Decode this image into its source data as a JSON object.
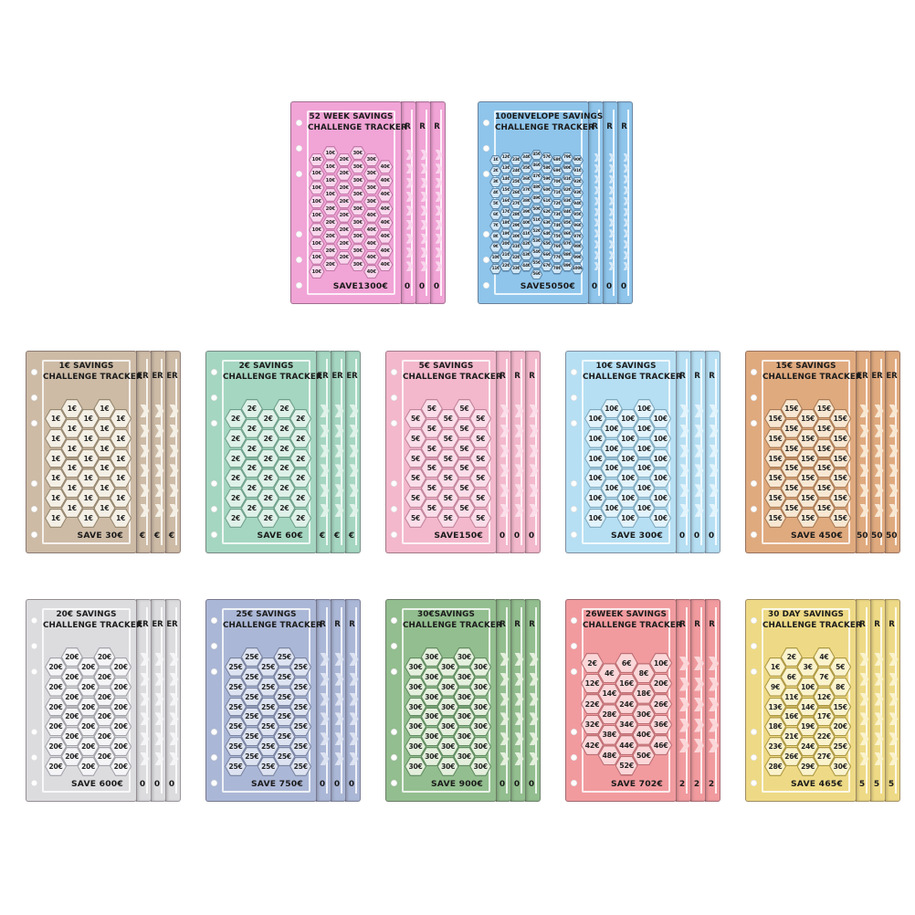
{
  "page": {
    "background": "#ffffff"
  },
  "cards": [
    {
      "id": "52-week",
      "type": "week52",
      "row": 0,
      "col": 0,
      "title": [
        "52 WEEK SAVINGS",
        "CHALLENGE TRACKER"
      ],
      "save_label": "SAVE1300€",
      "edge_top": "R",
      "edge_bottom": "0",
      "colors": {
        "bg": "#F1A4D6",
        "hex_fill": "#F9D7ED",
        "hex_border": "#C478A9"
      },
      "col_dy": [
        0.5,
        0,
        0.5,
        0,
        0.5,
        1
      ],
      "hex_columns": [
        [
          "10€",
          "10€",
          "10€",
          "10€",
          "10€",
          "10€",
          "10€",
          "10€",
          "10€"
        ],
        [
          "10€",
          "10€",
          "10€",
          "10€",
          "20€",
          "20€",
          "20€",
          "20€",
          "20€"
        ],
        [
          "20€",
          "20€",
          "20€",
          "20€",
          "20€",
          "20€",
          "20€",
          "20€"
        ],
        [
          "30€",
          "30€",
          "30€",
          "30€",
          "30€",
          "30€",
          "30€",
          "30€",
          "30€"
        ],
        [
          "30€",
          "30€",
          "30€",
          "30€",
          "40€",
          "40€",
          "40€",
          "40€",
          "40€"
        ],
        [
          "40€",
          "40€",
          "40€",
          "40€",
          "40€",
          "40€",
          "40€",
          "40€"
        ]
      ]
    },
    {
      "id": "100-envelope",
      "type": "env100",
      "row": 0,
      "col": 1,
      "title": [
        "100ENVELOPE SAVINGS",
        "CHALLENGE TRACKER"
      ],
      "save_label": "SAVE5050€",
      "edge_top": "R",
      "edge_bottom": "0",
      "colors": {
        "bg": "#8FC5EB",
        "hex_fill": "#D3E8F8",
        "hex_border": "#5D89AC"
      },
      "col_dy": [
        0.5,
        0.25,
        0.5,
        0.25,
        0,
        0.25,
        0.5,
        0.25,
        0.5
      ],
      "hex_columns": [
        [
          "1€",
          "2€",
          "3€",
          "4€",
          "5€",
          "6€",
          "7€",
          "8€",
          "9€",
          "10€",
          "11€"
        ],
        [
          "12€",
          "13€",
          "14€",
          "15€",
          "16€",
          "17€",
          "18€",
          "19€",
          "20€",
          "21€",
          "22€"
        ],
        [
          "23€",
          "24€",
          "25€",
          "26€",
          "27€",
          "28€",
          "29€",
          "30€",
          "31€",
          "32€",
          "33€"
        ],
        [
          "34€",
          "35€",
          "36€",
          "37€",
          "38€",
          "39€",
          "40€",
          "41€",
          "42€",
          "43€",
          "44€"
        ],
        [
          "45€",
          "46€",
          "47€",
          "48€",
          "49€",
          "50€",
          "51€",
          "52€",
          "53€",
          "54€",
          "55€",
          "56€"
        ],
        [
          "57€",
          "58€",
          "59€",
          "60€",
          "61€",
          "62€",
          "63€",
          "64€",
          "65€",
          "66€",
          "67€"
        ],
        [
          "68€",
          "69€",
          "70€",
          "71€",
          "72€",
          "73€",
          "74€",
          "75€",
          "76€",
          "77€",
          "78€"
        ],
        [
          "79€",
          "80€",
          "81€",
          "82€",
          "83€",
          "84€",
          "85€",
          "86€",
          "87€",
          "88€",
          "89€"
        ],
        [
          "90€",
          "91€",
          "92€",
          "93€",
          "94€",
          "95€",
          "96€",
          "97€",
          "98€",
          "99€",
          "100€"
        ]
      ]
    },
    {
      "id": "1-euro",
      "type": "norm",
      "row": 1,
      "col": 0,
      "title": [
        "1€ SAVINGS",
        "CHALLENGE TRACKER"
      ],
      "save_label": "SAVE 30€",
      "edge_top": "ER",
      "edge_bottom": "€",
      "colors": {
        "bg": "#CDBBA6",
        "hex_fill": "#F5F0E6",
        "hex_border": "#96876F"
      },
      "col_dy": [
        0.5,
        0,
        0.5,
        0,
        0.5
      ],
      "hex_columns": [
        [
          "1€",
          "1€",
          "1€",
          "1€",
          "1€",
          "1€"
        ],
        [
          "1€",
          "1€",
          "1€",
          "1€",
          "1€",
          "1€"
        ],
        [
          "1€",
          "1€",
          "1€",
          "1€",
          "1€",
          "1€"
        ],
        [
          "1€",
          "1€",
          "1€",
          "1€",
          "1€",
          "1€"
        ],
        [
          "1€",
          "1€",
          "1€",
          "1€",
          "1€",
          "1€"
        ]
      ]
    },
    {
      "id": "2-euro",
      "type": "norm",
      "row": 1,
      "col": 1,
      "title": [
        "2€ SAVINGS",
        "CHALLENGE TRACKER"
      ],
      "save_label": "SAVE 60€",
      "edge_top": "ER",
      "edge_bottom": "€",
      "colors": {
        "bg": "#A5D6C1",
        "hex_fill": "#DFF2E9",
        "hex_border": "#6FA08B"
      },
      "col_dy": [
        0.5,
        0,
        0.5,
        0,
        0.5
      ],
      "hex_columns": [
        [
          "2€",
          "2€",
          "2€",
          "2€",
          "2€",
          "2€"
        ],
        [
          "2€",
          "2€",
          "2€",
          "2€",
          "2€",
          "2€"
        ],
        [
          "2€",
          "2€",
          "2€",
          "2€",
          "2€",
          "2€"
        ],
        [
          "2€",
          "2€",
          "2€",
          "2€",
          "2€",
          "2€"
        ],
        [
          "2€",
          "2€",
          "2€",
          "2€",
          "2€",
          "2€"
        ]
      ]
    },
    {
      "id": "5-euro",
      "type": "norm",
      "row": 1,
      "col": 2,
      "title": [
        "5€ SAVINGS",
        "CHALLENGE TRACKER"
      ],
      "save_label": "SAVE150€",
      "edge_top": "R",
      "edge_bottom": "0",
      "colors": {
        "bg": "#F3B8CC",
        "hex_fill": "#FBDEE9",
        "hex_border": "#C2849B"
      },
      "col_dy": [
        0.5,
        0,
        0.5,
        0,
        0.5
      ],
      "hex_columns": [
        [
          "5€",
          "5€",
          "5€",
          "5€",
          "5€",
          "5€"
        ],
        [
          "5€",
          "5€",
          "5€",
          "5€",
          "5€",
          "5€"
        ],
        [
          "5€",
          "5€",
          "5€",
          "5€",
          "5€",
          "5€"
        ],
        [
          "5€",
          "5€",
          "5€",
          "5€",
          "5€",
          "5€"
        ],
        [
          "5€",
          "5€",
          "5€",
          "5€",
          "5€",
          "5€"
        ]
      ]
    },
    {
      "id": "10-euro",
      "type": "norm",
      "row": 1,
      "col": 3,
      "title": [
        "10€ SAVINGS",
        "CHALLENGE TRACKER"
      ],
      "save_label": "SAVE 300€",
      "edge_top": "R",
      "edge_bottom": "0",
      "colors": {
        "bg": "#B6DFF3",
        "hex_fill": "#E3F4FC",
        "hex_border": "#7FA9BE"
      },
      "col_dy": [
        0.5,
        0,
        0.5,
        0,
        0.5
      ],
      "hex_columns": [
        [
          "10€",
          "10€",
          "10€",
          "10€",
          "10€",
          "10€"
        ],
        [
          "10€",
          "10€",
          "10€",
          "10€",
          "10€",
          "10€"
        ],
        [
          "10€",
          "10€",
          "10€",
          "10€",
          "10€",
          "10€"
        ],
        [
          "10€",
          "10€",
          "10€",
          "10€",
          "10€",
          "10€"
        ],
        [
          "10€",
          "10€",
          "10€",
          "10€",
          "10€",
          "10€"
        ]
      ]
    },
    {
      "id": "15-euro",
      "type": "norm",
      "row": 1,
      "col": 4,
      "title": [
        "15€ SAVINGS",
        "CHALLENGE TRACKER"
      ],
      "save_label": "SAVE 450€",
      "edge_top": "ER",
      "edge_bottom": "50",
      "colors": {
        "bg": "#E0AA7F",
        "hex_fill": "#F8E8D3",
        "hex_border": "#A97B54"
      },
      "col_dy": [
        0.5,
        0,
        0.5,
        0,
        0.5
      ],
      "hex_columns": [
        [
          "15€",
          "15€",
          "15€",
          "15€",
          "15€",
          "15€"
        ],
        [
          "15€",
          "15€",
          "15€",
          "15€",
          "15€",
          "15€"
        ],
        [
          "15€",
          "15€",
          "15€",
          "15€",
          "15€",
          "15€"
        ],
        [
          "15€",
          "15€",
          "15€",
          "15€",
          "15€",
          "15€"
        ],
        [
          "15€",
          "15€",
          "15€",
          "15€",
          "15€",
          "15€"
        ]
      ]
    },
    {
      "id": "20-euro",
      "type": "norm",
      "row": 2,
      "col": 0,
      "title": [
        "20€ SAVINGS",
        "CHALLENGE TRACKER"
      ],
      "save_label": "SAVE 600€",
      "edge_top": "ER",
      "edge_bottom": "0",
      "colors": {
        "bg": "#DCDCDF",
        "hex_fill": "#F5F5F7",
        "hex_border": "#A2A3A9"
      },
      "col_dy": [
        0.5,
        0,
        0.5,
        0,
        0.5
      ],
      "hex_columns": [
        [
          "20€",
          "20€",
          "20€",
          "20€",
          "20€",
          "20€"
        ],
        [
          "20€",
          "20€",
          "20€",
          "20€",
          "20€",
          "20€"
        ],
        [
          "20€",
          "20€",
          "20€",
          "20€",
          "20€",
          "20€"
        ],
        [
          "20€",
          "20€",
          "20€",
          "20€",
          "20€",
          "20€"
        ],
        [
          "20€",
          "20€",
          "20€",
          "20€",
          "20€",
          "20€"
        ]
      ]
    },
    {
      "id": "25-euro",
      "type": "norm",
      "row": 2,
      "col": 1,
      "title": [
        "25€ SAVINGS",
        "CHALLENGE TRACKER"
      ],
      "save_label": "SAVE 750€",
      "edge_top": "R",
      "edge_bottom": "0",
      "colors": {
        "bg": "#ABB7D6",
        "hex_fill": "#DDE3F1",
        "hex_border": "#7A84A1"
      },
      "col_dy": [
        0.5,
        0,
        0.5,
        0,
        0.5
      ],
      "hex_columns": [
        [
          "25€",
          "25€",
          "25€",
          "25€",
          "25€",
          "25€"
        ],
        [
          "25€",
          "25€",
          "25€",
          "25€",
          "25€",
          "25€"
        ],
        [
          "25€",
          "25€",
          "25€",
          "25€",
          "25€",
          "25€"
        ],
        [
          "25€",
          "25€",
          "25€",
          "25€",
          "25€",
          "25€"
        ],
        [
          "25€",
          "25€",
          "25€",
          "25€",
          "25€",
          "25€"
        ]
      ]
    },
    {
      "id": "30-euro",
      "type": "norm",
      "row": 2,
      "col": 2,
      "title": [
        "30€SAVINGS",
        "CHALLENGE TRACKER"
      ],
      "save_label": "SAVE 900€",
      "edge_top": "R",
      "edge_bottom": "0",
      "colors": {
        "bg": "#93BE8F",
        "hex_fill": "#E4F0DD",
        "hex_border": "#618C60"
      },
      "col_dy": [
        0.5,
        0,
        0.5,
        0,
        0.5
      ],
      "hex_columns": [
        [
          "30€",
          "30€",
          "30€",
          "30€",
          "30€",
          "30€"
        ],
        [
          "30€",
          "30€",
          "30€",
          "30€",
          "30€",
          "30€"
        ],
        [
          "30€",
          "30€",
          "30€",
          "30€",
          "30€",
          "30€"
        ],
        [
          "30€",
          "30€",
          "30€",
          "30€",
          "30€",
          "30€"
        ],
        [
          "30€",
          "30€",
          "30€",
          "30€",
          "30€",
          "30€"
        ]
      ]
    },
    {
      "id": "26-week",
      "type": "week26",
      "row": 2,
      "col": 3,
      "title": [
        "26WEEK SAVINGS",
        "CHALLENGE TRACKER"
      ],
      "save_label": "SAVE 702€",
      "edge_top": "R",
      "edge_bottom": "2",
      "colors": {
        "bg": "#F19B9F",
        "hex_fill": "#FBD7D9",
        "hex_border": "#BC6E73"
      },
      "col_dy": [
        0,
        0.5,
        0,
        0.5,
        0
      ],
      "hex_columns": [
        [
          "2€",
          "12€",
          "22€",
          "32€",
          "42€"
        ],
        [
          "4€",
          "14€",
          "28€",
          "38€",
          "48€"
        ],
        [
          "6€",
          "16€",
          "24€",
          "34€",
          "44€",
          "52€"
        ],
        [
          "8€",
          "18€",
          "30€",
          "40€",
          "50€"
        ],
        [
          "10€",
          "20€",
          "26€",
          "36€",
          "46€"
        ]
      ]
    },
    {
      "id": "30-day",
      "type": "norm",
      "row": 2,
      "col": 4,
      "title": [
        "30 DAY SAVINGS",
        "CHALLENGE TRACKER"
      ],
      "save_label": "SAVE 465€",
      "edge_top": "R",
      "edge_bottom": "5",
      "colors": {
        "bg": "#EEDA86",
        "hex_fill": "#FAF3CD",
        "hex_border": "#AD9741"
      },
      "col_dy": [
        0.5,
        0,
        0.5,
        0,
        0.5
      ],
      "hex_columns": [
        [
          "1€",
          "9€",
          "13€",
          "18€",
          "23€",
          "28€"
        ],
        [
          "2€",
          "6€",
          "11€",
          "16€",
          "21€",
          "26€"
        ],
        [
          "3€",
          "10€",
          "14€",
          "19€",
          "24€",
          "29€"
        ],
        [
          "4€",
          "7€",
          "12€",
          "17€",
          "22€",
          "27€"
        ],
        [
          "5€",
          "8€",
          "15€",
          "20€",
          "25€",
          "30€"
        ]
      ]
    }
  ]
}
